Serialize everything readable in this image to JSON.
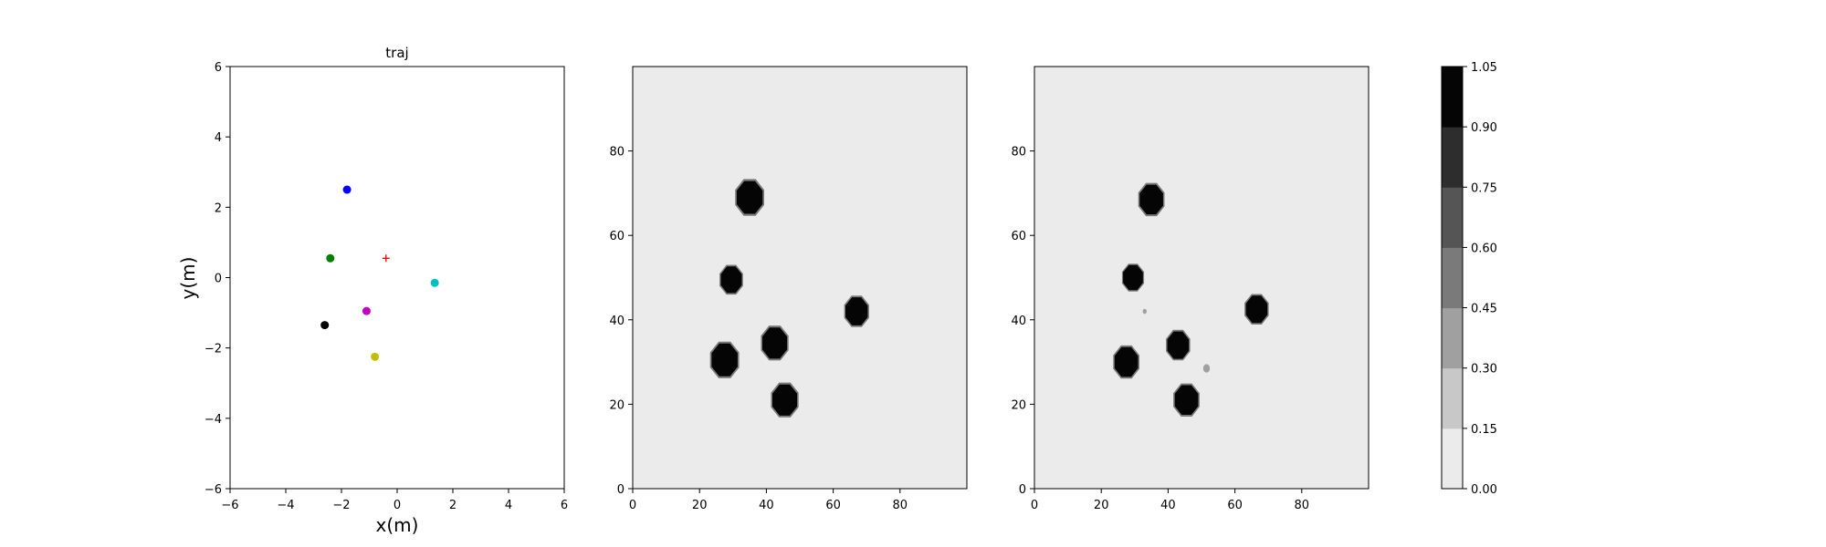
{
  "chart_data": [
    {
      "type": "scatter",
      "title": "traj",
      "xlabel": "x(m)",
      "ylabel": "y(m)",
      "xlim": [
        -6,
        6
      ],
      "ylim": [
        -6,
        6
      ],
      "xticks": [
        -6,
        -4,
        -2,
        0,
        2,
        4,
        6
      ],
      "yticks": [
        -6,
        -4,
        -2,
        0,
        2,
        4,
        6
      ],
      "grid": false,
      "points": [
        {
          "x": -1.8,
          "y": 2.5,
          "color": "#0000ff",
          "marker": "circle"
        },
        {
          "x": -2.4,
          "y": 0.55,
          "color": "#008000",
          "marker": "circle"
        },
        {
          "x": -0.4,
          "y": 0.55,
          "color": "#ff0000",
          "marker": "plus"
        },
        {
          "x": 1.35,
          "y": -0.15,
          "color": "#00bfbf",
          "marker": "circle"
        },
        {
          "x": -1.1,
          "y": -0.95,
          "color": "#bf00bf",
          "marker": "circle"
        },
        {
          "x": -2.6,
          "y": -1.35,
          "color": "#000000",
          "marker": "circle"
        },
        {
          "x": -0.8,
          "y": -2.25,
          "color": "#bfbf00",
          "marker": "circle"
        }
      ]
    },
    {
      "type": "heatmap",
      "title": "",
      "xlim": [
        0,
        100
      ],
      "ylim": [
        0,
        100
      ],
      "xticks": [
        0,
        20,
        40,
        60,
        80
      ],
      "yticks": [
        0,
        20,
        40,
        60,
        80
      ],
      "background_value": 0.07,
      "blobs": [
        {
          "cx": 35,
          "cy": 69,
          "r": 4.2,
          "value": 1.0
        },
        {
          "cx": 29.5,
          "cy": 49.5,
          "r": 3.4,
          "value": 1.0
        },
        {
          "cx": 67,
          "cy": 42,
          "r": 3.6,
          "value": 1.0
        },
        {
          "cx": 42.5,
          "cy": 34.5,
          "r": 4.0,
          "value": 1.0
        },
        {
          "cx": 27.5,
          "cy": 30.5,
          "r": 4.2,
          "value": 1.0
        },
        {
          "cx": 45.5,
          "cy": 21,
          "r": 4.0,
          "value": 1.0
        }
      ]
    },
    {
      "type": "heatmap",
      "title": "",
      "xlim": [
        0,
        100
      ],
      "ylim": [
        0,
        100
      ],
      "xticks": [
        0,
        20,
        40,
        60,
        80
      ],
      "yticks": [
        0,
        20,
        40,
        60,
        80
      ],
      "background_value": 0.07,
      "blobs": [
        {
          "cx": 35,
          "cy": 68.5,
          "r": 3.8,
          "value": 1.0
        },
        {
          "cx": 29.5,
          "cy": 50,
          "r": 3.2,
          "value": 1.0
        },
        {
          "cx": 66.5,
          "cy": 42.5,
          "r": 3.5,
          "value": 1.0
        },
        {
          "cx": 43,
          "cy": 34,
          "r": 3.5,
          "value": 1.0
        },
        {
          "cx": 27.5,
          "cy": 30,
          "r": 3.8,
          "value": 1.0
        },
        {
          "cx": 45.5,
          "cy": 21,
          "r": 3.8,
          "value": 1.0
        },
        {
          "cx": 33,
          "cy": 42,
          "r": 0.6,
          "value": 0.3
        },
        {
          "cx": 51.5,
          "cy": 28.5,
          "r": 1.0,
          "value": 0.3
        }
      ]
    }
  ],
  "colorbar": {
    "ticks": [
      "0.00",
      "0.15",
      "0.30",
      "0.45",
      "0.60",
      "0.75",
      "0.90",
      "1.05"
    ],
    "levels": [
      0,
      0.15,
      0.3,
      0.45,
      0.6,
      0.75,
      0.9,
      1.05
    ],
    "colors": [
      "#ebebeb",
      "#c8c8c8",
      "#a0a0a0",
      "#7a7a7a",
      "#555555",
      "#2d2d2d",
      "#050505"
    ]
  }
}
